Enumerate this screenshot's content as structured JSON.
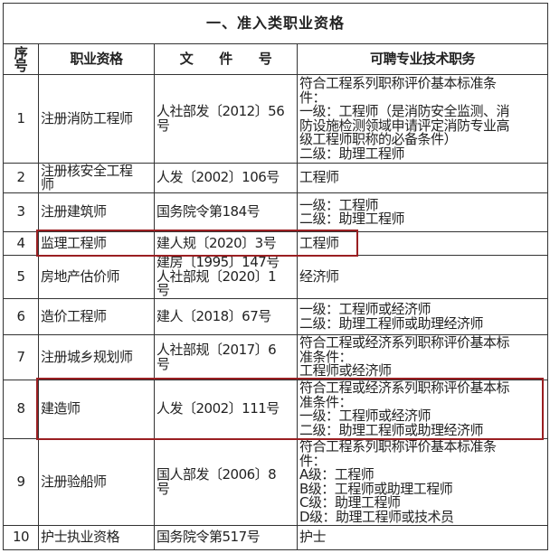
{
  "title": "一、准入类职业资格",
  "headers": {
    "seq": "序号",
    "qualification": "职业资格",
    "document": "文　　件　　号",
    "positions": "可聘专业技术职务"
  },
  "highlight_color": "#9a1f22",
  "rows": [
    {
      "no": "1",
      "qualification": [
        "注册消防工程师"
      ],
      "document": [
        "人社部发〔2012〕56",
        "号"
      ],
      "positions": [
        "符合工程系列职称评价基本标准条",
        "件：",
        "一级：工程师（是消防安全监测、消",
        "防设施检测领域申请评定消防专业高",
        "级工程师职称的必备条件）",
        "二级：助理工程师"
      ],
      "highlighted": false
    },
    {
      "no": "2",
      "qualification": [
        "注册核安全工程",
        "师"
      ],
      "document": [
        "人发〔2002〕106号"
      ],
      "positions": [
        "工程师"
      ],
      "highlighted": false
    },
    {
      "no": "3",
      "qualification": [
        "注册建筑师"
      ],
      "document": [
        "国务院令第184号"
      ],
      "positions": [
        "一级：工程师",
        "二级：助理工程师"
      ],
      "highlighted": false
    },
    {
      "no": "4",
      "qualification": [
        "监理工程师"
      ],
      "document": [
        "建人规〔2020〕3号"
      ],
      "positions": [
        "工程师"
      ],
      "highlighted": true
    },
    {
      "no": "5",
      "qualification": [
        "房地产估价师"
      ],
      "document": [
        "建房〔1995〕147号",
        "人社部规〔2020〕1",
        "号"
      ],
      "positions": [
        "经济师"
      ],
      "highlighted": false
    },
    {
      "no": "6",
      "qualification": [
        "造价工程师"
      ],
      "document": [
        "建人〔2018〕67号"
      ],
      "positions": [
        "一级：工程师或经济师",
        "二级：助理工程师或助理经济师"
      ],
      "highlighted": false
    },
    {
      "no": "7",
      "qualification": [
        "注册城乡规划师"
      ],
      "document": [
        "人社部规〔2017〕6",
        "号"
      ],
      "positions": [
        "符合工程或经济系列职称评价基本标",
        "准条件：",
        "工程师或经济师"
      ],
      "highlighted": false
    },
    {
      "no": "8",
      "qualification": [
        "建造师"
      ],
      "document": [
        "人发〔2002〕111号"
      ],
      "positions": [
        "符合工程或经济系列职称评价基本标",
        "准条件：",
        "一级：工程师或经济师",
        "二级：助理工程师或助理经济师"
      ],
      "highlighted": true
    },
    {
      "no": "9",
      "qualification": [
        "注册验船师"
      ],
      "document": [
        "国人部发〔2006〕8",
        "号"
      ],
      "positions": [
        "符合工程系列职称评价基本标准条",
        "件：",
        "A级：工程师",
        "B级：工程师或助理工程师",
        "C级：助理工程师",
        "D级：助理工程师或技术员"
      ],
      "highlighted": false
    },
    {
      "no": "10",
      "qualification": [
        "护士执业资格"
      ],
      "document": [
        "国务院令第517号"
      ],
      "positions": [
        "护士"
      ],
      "highlighted": false
    }
  ]
}
